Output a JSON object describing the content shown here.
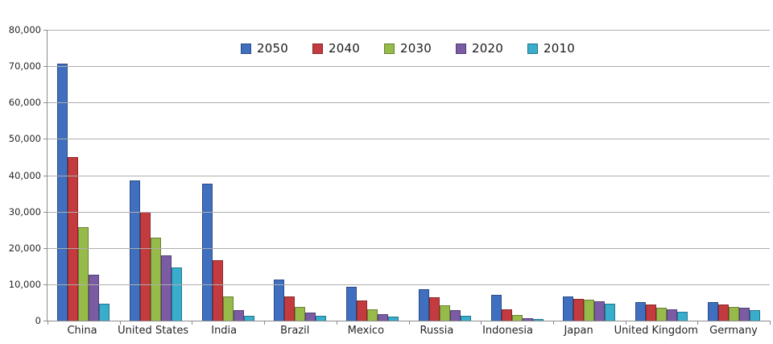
{
  "chart_data": {
    "type": "bar",
    "title": "",
    "xlabel": "",
    "ylabel": "",
    "grid": true,
    "legend_position": "top-center",
    "ylim": [
      0,
      80000
    ],
    "ytick_labels": [
      "80,000",
      "70,000",
      "60,000",
      "50,000",
      "40,000",
      "30,000",
      "20,000",
      "10,000",
      "0"
    ],
    "ytick_values": [
      80000,
      70000,
      60000,
      50000,
      40000,
      30000,
      20000,
      10000,
      0
    ],
    "categories": [
      "China",
      "United States",
      "India",
      "Brazil",
      "Mexico",
      "Russia",
      "Indonesia",
      "Japan",
      "United Kingdom",
      "Germany"
    ],
    "series": [
      {
        "name": "2050",
        "color": "#3f6fbe",
        "border": "#2a4c84",
        "values": [
          70710,
          38514,
          37668,
          11366,
          9340,
          8580,
          7010,
          6677,
          5133,
          5024
        ]
      },
      {
        "name": "2040",
        "color": "#c43b3f",
        "border": "#8a2628",
        "values": [
          45022,
          29823,
          16510,
          6631,
          5471,
          6320,
          3099,
          6042,
          4344,
          4388
        ]
      },
      {
        "name": "2030",
        "color": "#97bb4b",
        "border": "#687f33",
        "values": [
          25610,
          22817,
          6683,
          3720,
          3068,
          4265,
          1479,
          5814,
          3595,
          3761
        ]
      },
      {
        "name": "2020",
        "color": "#7b5ca4",
        "border": "#523e72",
        "values": [
          12630,
          17978,
          2848,
          2194,
          1742,
          2847,
          752,
          5224,
          3101,
          3519
        ]
      },
      {
        "name": "2010",
        "color": "#38adcc",
        "border": "#23768c",
        "values": [
          4667,
          14535,
          1256,
          1346,
          1009,
          1371,
          419,
          4604,
          2546,
          2905
        ]
      }
    ],
    "colors": {
      "gridline": "#adadad",
      "axis": "#8c8c8c",
      "text": "#262626",
      "background": "#ffffff"
    }
  }
}
